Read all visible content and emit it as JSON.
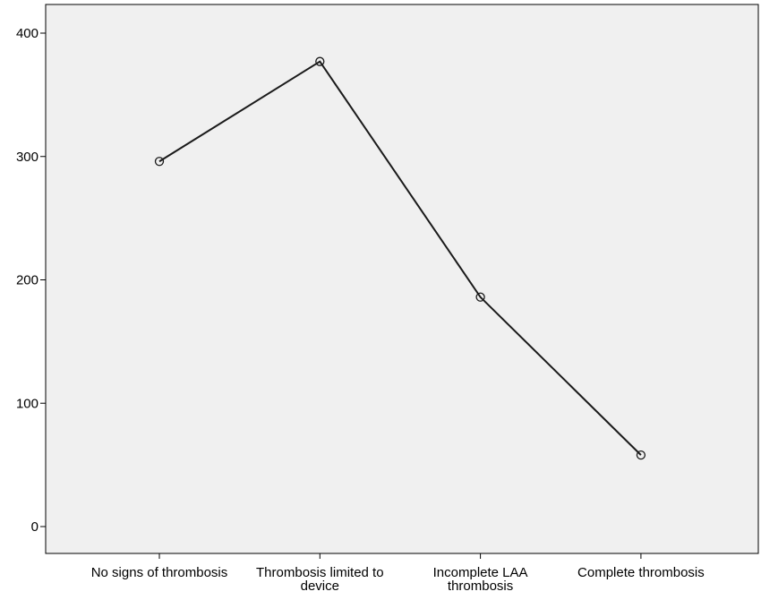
{
  "chart_data": {
    "type": "line",
    "title": "",
    "xlabel": "",
    "ylabel": "",
    "categories": [
      [
        "No signs of thrombosis"
      ],
      [
        "Thrombosis limited to",
        "device"
      ],
      [
        "Incomplete LAA",
        "thrombosis"
      ],
      [
        "Complete thrombosis"
      ]
    ],
    "values": [
      296,
      377,
      186,
      58
    ],
    "ylim": [
      0,
      420
    ],
    "yticks": [
      0,
      100,
      200,
      300,
      400
    ],
    "grid": false,
    "marker": "open-circle",
    "colors": {
      "plot_background": "#f0f0f0",
      "line": "#1a1a1a",
      "frame": "#000000"
    }
  }
}
